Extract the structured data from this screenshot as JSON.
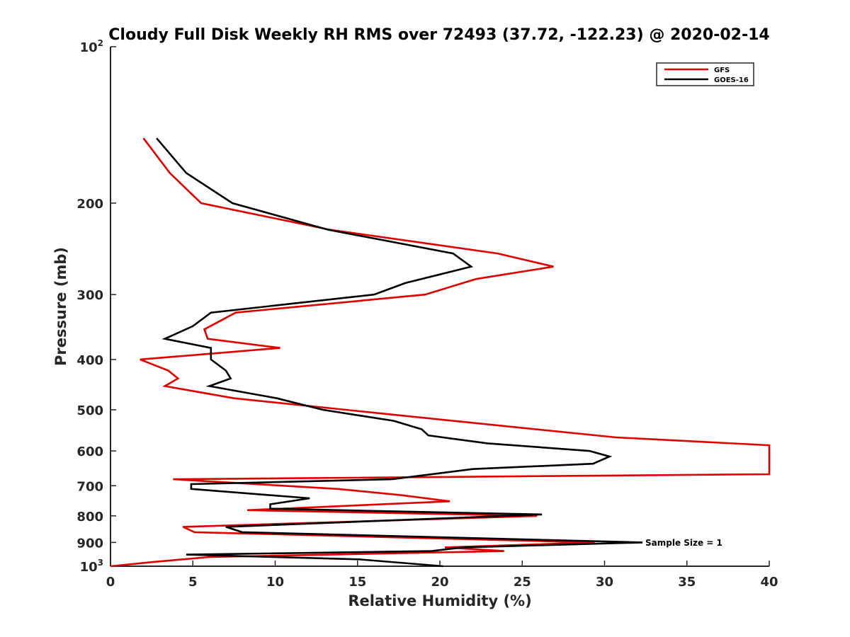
{
  "chart_data": {
    "type": "line",
    "title": "Cloudy Full Disk Weekly RH RMS over 72493 (37.72, -122.23) @ 2020-02-14",
    "xlabel": "Relative Humidity (%)",
    "ylabel": "Pressure (mb)",
    "xlim": [
      0,
      40
    ],
    "ylim": [
      1000,
      100
    ],
    "yscale": "log",
    "x_ticks": [
      "0",
      "5",
      "10",
      "15",
      "20",
      "25",
      "30",
      "35",
      "40"
    ],
    "y_ticks": [
      {
        "value": 100,
        "base": "10",
        "exp": "2"
      },
      {
        "value": 200,
        "label": "200"
      },
      {
        "value": 300,
        "label": "300"
      },
      {
        "value": 400,
        "label": "400"
      },
      {
        "value": 500,
        "label": "500"
      },
      {
        "value": 600,
        "label": "600"
      },
      {
        "value": 700,
        "label": "700"
      },
      {
        "value": 800,
        "label": "800"
      },
      {
        "value": 900,
        "label": "900"
      },
      {
        "value": 1000,
        "base": "10",
        "exp": "3"
      }
    ],
    "grid": false,
    "legend_position": "top-right",
    "annotation": "Sample Size = 1",
    "series": [
      {
        "name": "GFS",
        "color": "#e00000",
        "points": [
          [
            2.0,
            150
          ],
          [
            3.6,
            175
          ],
          [
            5.5,
            200
          ],
          [
            13.3,
            225
          ],
          [
            23.5,
            250
          ],
          [
            26.9,
            265
          ],
          [
            22.2,
            280
          ],
          [
            19.1,
            300
          ],
          [
            7.6,
            325
          ],
          [
            5.7,
            350
          ],
          [
            5.9,
            365
          ],
          [
            10.3,
            380
          ],
          [
            1.8,
            400
          ],
          [
            3.5,
            420
          ],
          [
            4.1,
            435
          ],
          [
            3.3,
            450
          ],
          [
            7.5,
            475
          ],
          [
            20.8,
            525
          ],
          [
            30.7,
            565
          ],
          [
            40.0,
            585
          ],
          [
            40.0,
            665
          ],
          [
            3.8,
            680
          ],
          [
            13.8,
            710
          ],
          [
            17.7,
            730
          ],
          [
            20.6,
            750
          ],
          [
            8.3,
            780
          ],
          [
            25.9,
            800
          ],
          [
            4.4,
            840
          ],
          [
            5.1,
            860
          ],
          [
            29.4,
            900
          ],
          [
            20.3,
            920
          ],
          [
            23.9,
            935
          ],
          [
            6.0,
            960
          ],
          [
            2.8,
            980
          ],
          [
            0.0,
            1000
          ]
        ]
      },
      {
        "name": "GOES-16",
        "color": "#000000",
        "points": [
          [
            2.8,
            150
          ],
          [
            4.6,
            175
          ],
          [
            7.4,
            200
          ],
          [
            13.2,
            225
          ],
          [
            20.8,
            250
          ],
          [
            21.9,
            265
          ],
          [
            17.9,
            285
          ],
          [
            16.0,
            300
          ],
          [
            6.1,
            325
          ],
          [
            5.0,
            345
          ],
          [
            3.3,
            365
          ],
          [
            6.1,
            380
          ],
          [
            6.1,
            400
          ],
          [
            7.0,
            420
          ],
          [
            7.3,
            435
          ],
          [
            6.0,
            450
          ],
          [
            10.1,
            475
          ],
          [
            12.9,
            500
          ],
          [
            17.2,
            525
          ],
          [
            18.9,
            545
          ],
          [
            19.3,
            560
          ],
          [
            22.9,
            580
          ],
          [
            29.1,
            600
          ],
          [
            30.3,
            615
          ],
          [
            29.3,
            635
          ],
          [
            22.0,
            650
          ],
          [
            17.1,
            680
          ],
          [
            4.9,
            695
          ],
          [
            4.9,
            710
          ],
          [
            12.1,
            740
          ],
          [
            9.7,
            760
          ],
          [
            9.7,
            775
          ],
          [
            26.2,
            795
          ],
          [
            7.0,
            840
          ],
          [
            8.0,
            860
          ],
          [
            32.3,
            900
          ],
          [
            21.4,
            920
          ],
          [
            19.5,
            935
          ],
          [
            4.6,
            950
          ],
          [
            15.1,
            970
          ],
          [
            20.2,
            1000
          ]
        ]
      }
    ]
  }
}
